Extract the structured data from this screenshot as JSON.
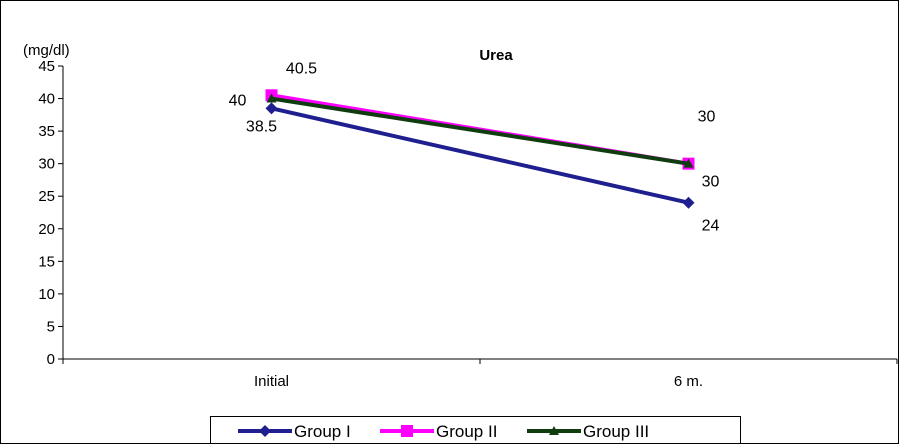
{
  "chart_data": {
    "type": "line",
    "title": "Urea",
    "unit_label": "(mg/dl)",
    "xlabel": "",
    "ylabel": "",
    "categories": [
      "Initial",
      "6 m."
    ],
    "ylim": [
      0,
      45
    ],
    "yticks": [
      0,
      5,
      10,
      15,
      20,
      25,
      30,
      35,
      40,
      45
    ],
    "grid": false,
    "legend_position": "bottom",
    "series": [
      {
        "name": "Group I",
        "values": [
          38.5,
          24
        ],
        "color": "#1f1f8f",
        "marker": "diamond",
        "labels": [
          "38.5",
          "24"
        ]
      },
      {
        "name": "Group II",
        "values": [
          40.5,
          30
        ],
        "color": "#ff00ff",
        "marker": "square",
        "labels": [
          "40.5",
          "30"
        ]
      },
      {
        "name": "Group III",
        "values": [
          40,
          30
        ],
        "color": "#0f3d0f",
        "marker": "triangle",
        "labels": [
          "40",
          "30"
        ]
      }
    ]
  }
}
